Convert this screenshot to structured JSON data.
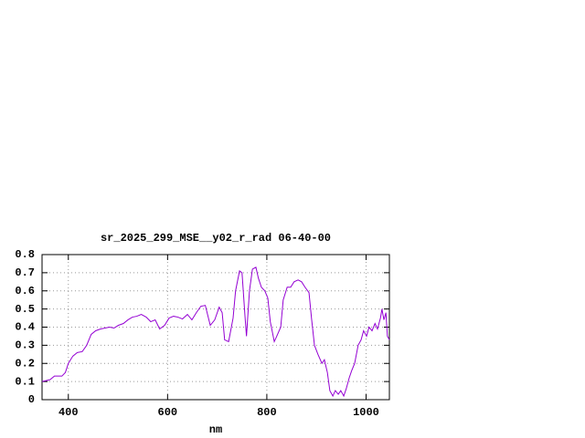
{
  "chart_data": {
    "type": "line",
    "title": "sr_2025_299_MSE__y02_r_rad 06-40-00",
    "x_label": "nm",
    "x": [
      347,
      363,
      372,
      387,
      394,
      400,
      409,
      418,
      428,
      437,
      446,
      455,
      465,
      474,
      483,
      492,
      501,
      511,
      520,
      529,
      538,
      547,
      557,
      566,
      575,
      584,
      594,
      603,
      612,
      621,
      630,
      640,
      649,
      658,
      667,
      676,
      686,
      695,
      704,
      710,
      715,
      723,
      732,
      737,
      745,
      750,
      756,
      759,
      765,
      771,
      778,
      783,
      789,
      796,
      802,
      807,
      815,
      820,
      828,
      833,
      841,
      848,
      855,
      863,
      870,
      877,
      885,
      890,
      896,
      903,
      911,
      916,
      922,
      927,
      933,
      938,
      944,
      949,
      955,
      960,
      966,
      971,
      977,
      984,
      990,
      995,
      1001,
      1006,
      1012,
      1018,
      1023,
      1029,
      1032,
      1036,
      1040,
      1043,
      1047
    ],
    "values": [
      0.1,
      0.11,
      0.13,
      0.13,
      0.15,
      0.2,
      0.24,
      0.26,
      0.265,
      0.3,
      0.36,
      0.38,
      0.39,
      0.395,
      0.4,
      0.395,
      0.41,
      0.42,
      0.44,
      0.455,
      0.46,
      0.47,
      0.455,
      0.43,
      0.44,
      0.39,
      0.41,
      0.45,
      0.46,
      0.455,
      0.445,
      0.47,
      0.44,
      0.48,
      0.515,
      0.52,
      0.41,
      0.44,
      0.51,
      0.48,
      0.33,
      0.32,
      0.45,
      0.6,
      0.71,
      0.7,
      0.46,
      0.35,
      0.6,
      0.72,
      0.73,
      0.67,
      0.62,
      0.6,
      0.56,
      0.43,
      0.32,
      0.35,
      0.4,
      0.55,
      0.62,
      0.62,
      0.65,
      0.66,
      0.65,
      0.62,
      0.59,
      0.45,
      0.3,
      0.25,
      0.2,
      0.22,
      0.15,
      0.05,
      0.02,
      0.05,
      0.03,
      0.05,
      0.02,
      0.06,
      0.12,
      0.16,
      0.2,
      0.3,
      0.33,
      0.38,
      0.35,
      0.4,
      0.38,
      0.42,
      0.39,
      0.45,
      0.5,
      0.44,
      0.48,
      0.35,
      0.33
    ],
    "color": "#9400d3",
    "xlim": [
      347,
      1047
    ],
    "xticks": [
      400,
      600,
      800,
      1000
    ],
    "ylim": [
      0,
      0.8
    ],
    "yticks": [
      0,
      0.1,
      0.2,
      0.3,
      0.4,
      0.5,
      0.6,
      0.7,
      0.8
    ],
    "grid": true
  }
}
